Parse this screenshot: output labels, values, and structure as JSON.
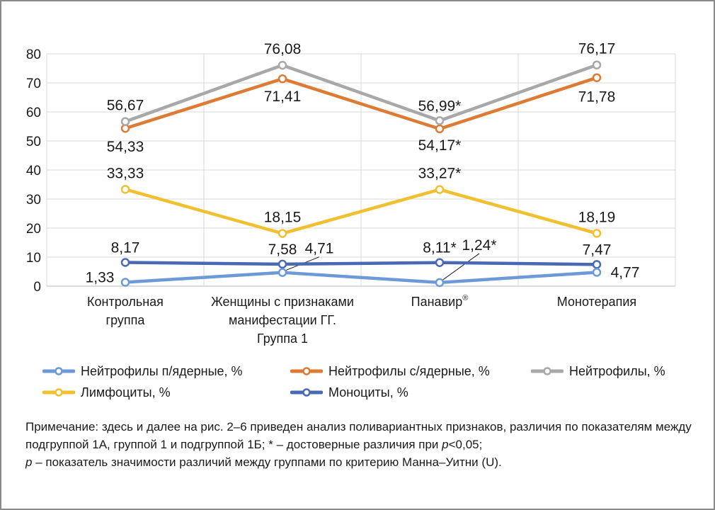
{
  "chart_data": {
    "type": "line",
    "categories": [
      [
        "Контрольная",
        "группа"
      ],
      [
        "Женщины с признаками",
        "манифестации ГГ.",
        "Группа 1"
      ],
      [
        "Панавир®"
      ],
      [
        "Монотерапия"
      ]
    ],
    "ylim": [
      0,
      80
    ],
    "yticks": [
      "0",
      "10",
      "20",
      "30",
      "40",
      "50",
      "60",
      "70",
      "80"
    ],
    "grid": true,
    "series": [
      {
        "name": "Нейтрофилы п/ядерные, %",
        "color": "#6c9ad8",
        "values": [
          1.33,
          4.71,
          1.24,
          4.77
        ],
        "labels": [
          "1,33",
          "4,71",
          "1,24*",
          "4,77"
        ]
      },
      {
        "name": "Нейтрофилы с/ядерные, %",
        "color": "#dd7b35",
        "values": [
          54.33,
          71.41,
          54.17,
          71.78
        ],
        "labels": [
          "54,33",
          "71,41",
          "54,17*",
          "71,78"
        ]
      },
      {
        "name": "Нейтрофилы, %",
        "color": "#a8a8a8",
        "values": [
          56.67,
          76.08,
          56.99,
          76.17
        ],
        "labels": [
          "56,67",
          "76,08",
          "56,99*",
          "76,17"
        ]
      },
      {
        "name": "Лимфоциты, %",
        "color": "#f0c030",
        "values": [
          33.33,
          18.15,
          33.27,
          18.19
        ],
        "labels": [
          "33,33",
          "18,15",
          "33,27*",
          "18,19"
        ]
      },
      {
        "name": "Моноциты, %",
        "color": "#4a69b5",
        "values": [
          8.17,
          7.58,
          8.11,
          7.47
        ],
        "labels": [
          "8,17",
          "7,58",
          "8,11*",
          "7,47"
        ]
      }
    ]
  },
  "note": {
    "text1": "Примечание: здесь и далее на рис. 2–6 приведен анализ поливариантных признаков, различия по показателям между подгруппой 1А, группой 1 и подгруппой 1Б; * –  достоверные различия при ",
    "p": "p",
    "text2": "<0,05;",
    "p2": "p",
    "text3": " – показатель значимости различий между группами по критерию Манна–Уитни (U)."
  }
}
